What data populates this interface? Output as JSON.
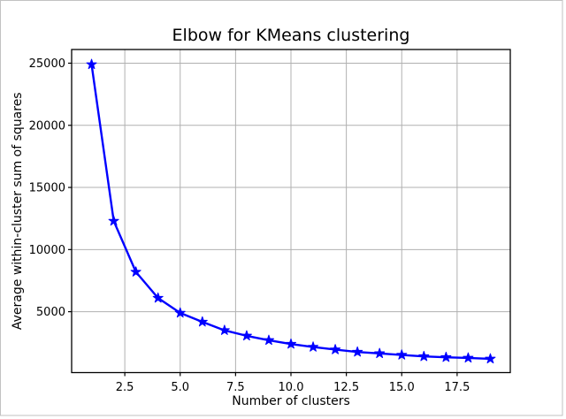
{
  "figure": {
    "background": "#ffffff",
    "border_color": "#c2c2c2"
  },
  "chart_data": {
    "type": "line",
    "title": "Elbow for KMeans clustering",
    "xlabel": "Number of clusters",
    "ylabel": "Average within-cluster sum of squares",
    "x": [
      1,
      2,
      3,
      4,
      5,
      6,
      7,
      8,
      9,
      10,
      11,
      12,
      13,
      14,
      15,
      16,
      17,
      18,
      19
    ],
    "y": [
      24900,
      12300,
      8200,
      6100,
      4900,
      4180,
      3500,
      3060,
      2700,
      2400,
      2160,
      1950,
      1760,
      1640,
      1520,
      1400,
      1330,
      1280,
      1210
    ],
    "series": [
      {
        "name": "average within-cluster sum of squares",
        "marker": "star",
        "color": "#0000ff"
      }
    ],
    "line_color": "#0000ff",
    "marker": "star",
    "line_width": 2.4,
    "grid": true,
    "grid_color": "#b0b0b0",
    "spine_color": "#000000",
    "xlim": [
      0.1,
      19.9
    ],
    "ylim": [
      100,
      26100
    ],
    "xticks": [
      2.5,
      5.0,
      7.5,
      10.0,
      12.5,
      15.0,
      17.5
    ],
    "xtick_labels": [
      "2.5",
      "5.0",
      "7.5",
      "10.0",
      "12.5",
      "15.0",
      "17.5"
    ],
    "yticks": [
      5000,
      10000,
      15000,
      20000,
      25000
    ],
    "ytick_labels": [
      "5000",
      "10000",
      "15000",
      "20000",
      "25000"
    ],
    "legend": null
  }
}
